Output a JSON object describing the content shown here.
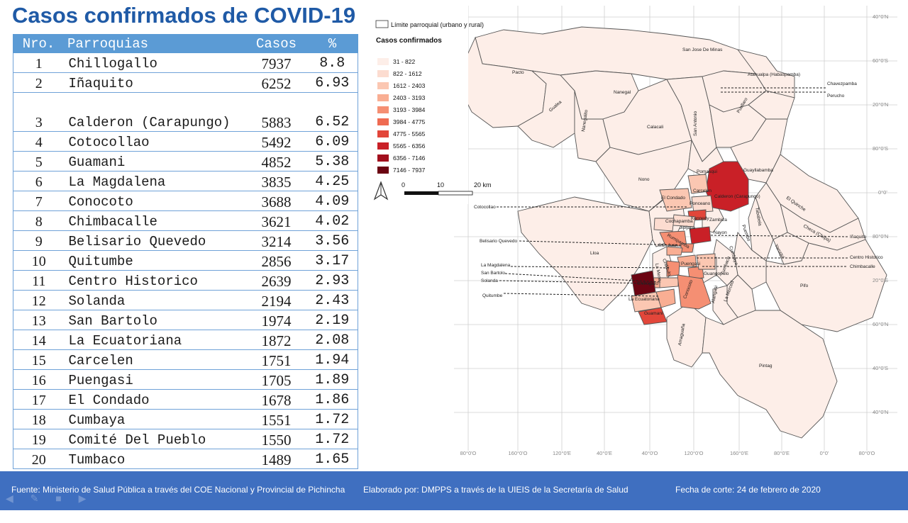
{
  "title": "Casos confirmados de COVID-19",
  "table": {
    "headers": [
      "Nro.",
      "Parroquias",
      "Casos",
      "%"
    ],
    "rows": [
      {
        "nro": "1",
        "parroquia": "Chillogallo",
        "casos": "7937",
        "pct": "8.8"
      },
      {
        "nro": "2",
        "parroquia": "Iñaquito",
        "casos": "6252",
        "pct": "6.93"
      },
      {
        "nro": "3",
        "parroquia": "Calderon (Carapungo)",
        "casos": "5883",
        "pct": "6.52"
      },
      {
        "nro": "4",
        "parroquia": "Cotocollao",
        "casos": "5492",
        "pct": "6.09"
      },
      {
        "nro": "5",
        "parroquia": "Guamani",
        "casos": "4852",
        "pct": "5.38"
      },
      {
        "nro": "6",
        "parroquia": "La Magdalena",
        "casos": "3835",
        "pct": "4.25"
      },
      {
        "nro": "7",
        "parroquia": "Conocoto",
        "casos": "3688",
        "pct": "4.09"
      },
      {
        "nro": "8",
        "parroquia": "Chimbacalle",
        "casos": "3621",
        "pct": "4.02"
      },
      {
        "nro": "9",
        "parroquia": "Belisario Quevedo",
        "casos": "3214",
        "pct": "3.56"
      },
      {
        "nro": "10",
        "parroquia": "Quitumbe",
        "casos": "2856",
        "pct": "3.17"
      },
      {
        "nro": "11",
        "parroquia": "Centro Historico",
        "casos": "2639",
        "pct": "2.93"
      },
      {
        "nro": "12",
        "parroquia": "Solanda",
        "casos": "2194",
        "pct": "2.43"
      },
      {
        "nro": "13",
        "parroquia": "San Bartolo",
        "casos": "1974",
        "pct": "2.19"
      },
      {
        "nro": "14",
        "parroquia": "La Ecuatoriana",
        "casos": "1872",
        "pct": "2.08"
      },
      {
        "nro": "15",
        "parroquia": "Carcelen",
        "casos": "1751",
        "pct": "1.94"
      },
      {
        "nro": "16",
        "parroquia": "Puengasi",
        "casos": "1705",
        "pct": "1.89"
      },
      {
        "nro": "17",
        "parroquia": "El Condado",
        "casos": "1678",
        "pct": "1.86"
      },
      {
        "nro": "18",
        "parroquia": "Cumbaya",
        "casos": "1551",
        "pct": "1.72"
      },
      {
        "nro": "19",
        "parroquia": "Comité Del Pueblo",
        "casos": "1550",
        "pct": "1.72"
      },
      {
        "nro": "20",
        "parroquia": "Tumbaco",
        "casos": "1489",
        "pct": "1.65"
      }
    ]
  },
  "map": {
    "boundary_legend": "Límite parroquial (urbano y rural)",
    "legend_title": "Casos confirmados",
    "legend": [
      {
        "label": "31 - 822",
        "color": "#fdeee8"
      },
      {
        "label": "822 - 1612",
        "color": "#fcdcd0"
      },
      {
        "label": "1612 - 2403",
        "color": "#fbc7b2"
      },
      {
        "label": "2403 - 3193",
        "color": "#f9ae93"
      },
      {
        "label": "3193 - 3984",
        "color": "#f58f73"
      },
      {
        "label": "3984 - 4775",
        "color": "#ef6b52"
      },
      {
        "label": "4775 - 5565",
        "color": "#e2463a"
      },
      {
        "label": "5565 - 6356",
        "color": "#c92027"
      },
      {
        "label": "6356 - 7146",
        "color": "#a20f1d"
      },
      {
        "label": "7146 - 7937",
        "color": "#6b0412"
      }
    ],
    "scale": [
      "0",
      "10",
      "20 km"
    ],
    "lat_labels": [
      "40°0'N",
      "60°0'S",
      "20°0'N",
      "80°0'S",
      "0°0'",
      "80°0'N",
      "20°0'S",
      "60°0'N",
      "40°0'S",
      "40°0'N"
    ],
    "lon_labels": [
      "80°0'O",
      "160°0'O",
      "120°0'E",
      "40°0'E",
      "40°0'O",
      "120°0'O",
      "160°0'E",
      "80°0'E",
      "0°0'",
      "80°0'O"
    ],
    "parish_labels": {
      "san_jose_de_minas": "San Jose De Minas",
      "pacto": "Pacto",
      "atahualpa": "Atahualpa (Habaspamba)",
      "chavezpamba": "Chavezpamba",
      "perucho": "Perucho",
      "gualea": "Gualea",
      "nanegal": "Nanegal",
      "nanegalito": "Nanegalito",
      "calacali": "Calacali",
      "san_antonio": "San Antonio",
      "puellaro": "Puellaro",
      "pomasqui": "Pomasqui",
      "guayllabamba": "Guayllabamba",
      "nono": "Nono",
      "carcelen": "Carcelen",
      "el_condado": "El Condado",
      "calderon": "Calderon (Carapungo)",
      "ponceano": "Ponceano",
      "el_quinche": "El Quinche",
      "cotocollao": "Cotocollao",
      "kennedy": "Kennedy",
      "zambiza": "Zambiza",
      "jipijapa": "Jipijapa",
      "cochapamba": "Cochapamba",
      "nayon": "Nayon",
      "tababela": "Tababela",
      "checa": "Checa (Chilpa)",
      "inaquito": "Iñaquito",
      "rumipamba": "Rumipamba",
      "san_juan": "San Juan",
      "belisario": "Belisario Quevedo",
      "puembo": "Puembo",
      "cumbaya": "Cumbaya",
      "tumbaco": "Tumbaco",
      "yaruqui": "Yaruqui",
      "lloa": "Lloa",
      "centro_historico": "Centro Historico",
      "chimbacalle": "Chimbacalle",
      "la_magdalena": "La Magdalena",
      "san_bartolo": "San Bartolo",
      "solanda": "Solanda",
      "quitumbe": "Quitumbe",
      "puengasi": "Puengasi",
      "guangopolo": "Guangopolo",
      "la_mena": "La Mena",
      "chilibulo": "Chilibulo",
      "chillogallo": "Chillogallo",
      "conocoto": "Conocoto",
      "alangasi": "Alangasi",
      "la_merced": "La Merced",
      "la_ecuatoriana": "La Ecuatoriana",
      "guamani": "Guamani",
      "pifo": "Pifo",
      "amaguana": "Amaguaña",
      "pintag": "Pintag"
    }
  },
  "footer": {
    "source": "Fuente: Ministerio de Salud Pública a través del COE Nacional y Provincial de Pichincha",
    "author": "Elaborado por: DMPPS a través de la UIEIS de la Secretaría de Salud",
    "date": "Fecha de corte: 24 de febrero de 2020"
  }
}
